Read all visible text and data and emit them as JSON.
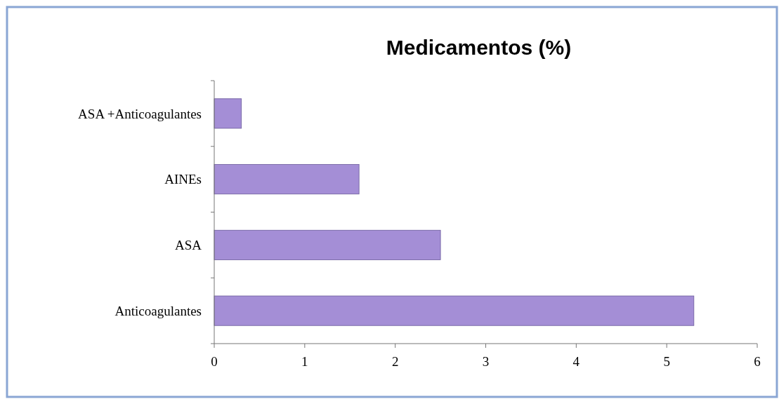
{
  "chart_data": {
    "type": "bar",
    "title": "Medicamentos (%)",
    "orientation": "horizontal",
    "categories": [
      "ASA +Anticoagulantes",
      "AINEs",
      "ASA",
      "Anticoagulantes"
    ],
    "values": [
      0.3,
      1.6,
      2.5,
      5.3
    ],
    "color": "#a48ed6",
    "xlim": [
      0,
      6
    ],
    "xticks": [
      0,
      1,
      2,
      3,
      4,
      5,
      6
    ],
    "grid": false
  }
}
